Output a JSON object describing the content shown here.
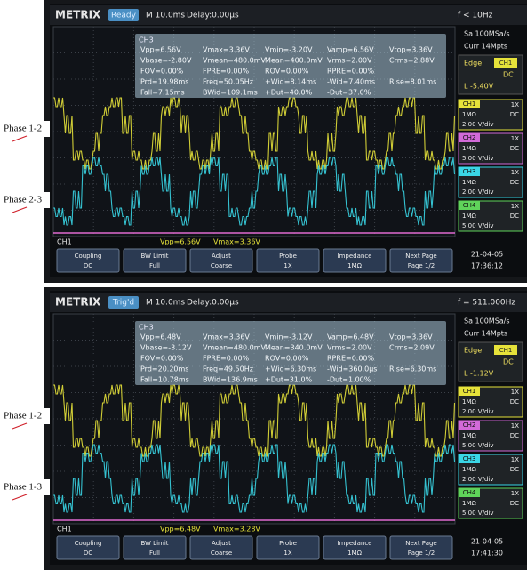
{
  "panels": [
    {
      "header": {
        "brand": "METRIX",
        "status": "Ready",
        "timebase": "M 10.0ms",
        "delay": "Delay:0.00µs",
        "frequency": "f < 10Hz"
      },
      "acquisition": [
        "Sa 100MSa/s",
        "Curr 14Mpts"
      ],
      "trigger": {
        "label": "Edge",
        "source": "CH1",
        "coupling": "DC",
        "level": "L -5.40V"
      },
      "measurements": {
        "channel": "CH3",
        "rows": [
          [
            "Vpp=6.56V",
            "Vmax=3.36V",
            "Vmin=-3.20V",
            "Vamp=6.56V",
            "Vtop=3.36V"
          ],
          [
            "Vbase=-2.80V",
            "Vmean=480.0mV",
            "Mean=400.0mV",
            "Vrms=2.00V",
            "Crms=2.88V"
          ],
          [
            "FOV=0.00%",
            "FPRE=0.00%",
            "ROV=0.00%",
            "RPRE=0.00%"
          ],
          [
            "Prd=19.98ms",
            "Freq=50.05Hz",
            "+Wid=8.14ms",
            "-Wid=7.40ms",
            "Rise=8.01ms"
          ],
          [
            "Fall=7.15ms",
            "BWid=109.1ms",
            "+Dut=40.0%",
            "-Dut=37.0%"
          ]
        ]
      },
      "channels": [
        {
          "name": "CH1",
          "probe": "1X",
          "impedance": "1MΩ",
          "coupling": "DC",
          "scale": "2.00 V/div"
        },
        {
          "name": "CH2",
          "probe": "1X",
          "impedance": "1MΩ",
          "coupling": "DC",
          "scale": "5.00 V/div"
        },
        {
          "name": "CH3",
          "probe": "1X",
          "impedance": "1MΩ",
          "coupling": "DC",
          "scale": "2.00 V/div"
        },
        {
          "name": "CH4",
          "probe": "1X",
          "impedance": "1MΩ",
          "coupling": "DC",
          "scale": "5.00 V/div"
        }
      ],
      "readout": {
        "channel": "CH1",
        "vpp": "Vpp=6.56V",
        "vmax": "Vmax=3.36V"
      },
      "buttons": [
        {
          "title": "Coupling",
          "value": "DC"
        },
        {
          "title": "BW Limit",
          "value": "Full"
        },
        {
          "title": "Adjust",
          "value": "Coarse"
        },
        {
          "title": "Probe",
          "value": "1X"
        },
        {
          "title": "Impedance",
          "value": "1MΩ"
        },
        {
          "title": "Next Page",
          "value": "Page 1/2"
        }
      ],
      "date": "21-04-05",
      "time": "17:36:12",
      "labels": [
        "Phase 1-2",
        "Phase 2-3"
      ]
    },
    {
      "header": {
        "brand": "METRIX",
        "status": "Trig'd",
        "timebase": "M 10.0ms",
        "delay": "Delay:0.00µs",
        "frequency": "f = 511.000Hz"
      },
      "acquisition": [
        "Sa 100MSa/s",
        "Curr 14Mpts"
      ],
      "trigger": {
        "label": "Edge",
        "source": "CH1",
        "coupling": "DC",
        "level": "L -1.12V"
      },
      "measurements": {
        "channel": "CH3",
        "rows": [
          [
            "Vpp=6.48V",
            "Vmax=3.36V",
            "Vmin=-3.12V",
            "Vamp=6.48V",
            "Vtop=3.36V"
          ],
          [
            "Vbase=-3.12V",
            "Vmean=480.0mV",
            "Mean=340.0mV",
            "Vrms=2.00V",
            "Crms=2.09V"
          ],
          [
            "FOV=0.00%",
            "FPRE=0.00%",
            "ROV=0.00%",
            "RPRE=0.00%"
          ],
          [
            "Prd=20.20ms",
            "Freq=49.50Hz",
            "+Wid=6.30ms",
            "-Wid=360.0µs",
            "Rise=6.30ms"
          ],
          [
            "Fall=10.78ms",
            "BWid=136.9ms",
            "+Dut=31.0%",
            "-Dut=1.00%"
          ]
        ]
      },
      "channels": [
        {
          "name": "CH1",
          "probe": "1X",
          "impedance": "1MΩ",
          "coupling": "DC",
          "scale": "2.00 V/div"
        },
        {
          "name": "CH2",
          "probe": "1X",
          "impedance": "1MΩ",
          "coupling": "DC",
          "scale": "5.00 V/div"
        },
        {
          "name": "CH3",
          "probe": "1X",
          "impedance": "1MΩ",
          "coupling": "DC",
          "scale": "2.00 V/div"
        },
        {
          "name": "CH4",
          "probe": "1X",
          "impedance": "1MΩ",
          "coupling": "DC",
          "scale": "5.00 V/div"
        }
      ],
      "readout": {
        "channel": "CH1",
        "vpp": "Vpp=6.48V",
        "vmax": "Vmax=3.28V"
      },
      "buttons": [
        {
          "title": "Coupling",
          "value": "DC"
        },
        {
          "title": "BW Limit",
          "value": "Full"
        },
        {
          "title": "Adjust",
          "value": "Coarse"
        },
        {
          "title": "Probe",
          "value": "1X"
        },
        {
          "title": "Impedance",
          "value": "1MΩ"
        },
        {
          "title": "Next Page",
          "value": "Page 1/2"
        }
      ],
      "date": "21-04-05",
      "time": "17:41:30",
      "labels": [
        "Phase 1-2",
        "Phase 1-3"
      ]
    }
  ]
}
